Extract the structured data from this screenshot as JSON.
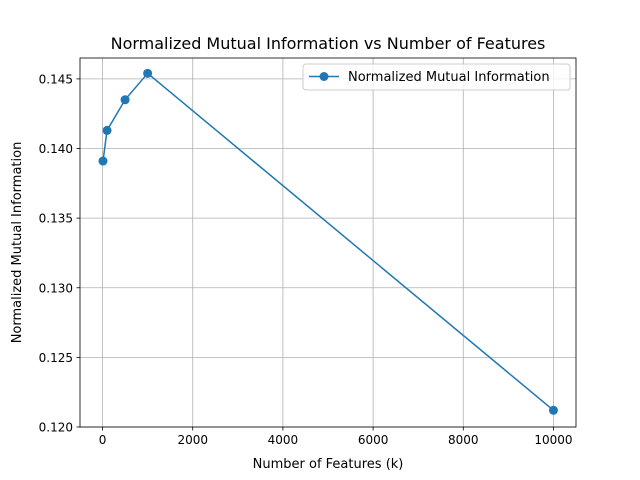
{
  "chart_data": {
    "type": "line",
    "title": "Normalized Mutual Information vs Number of Features",
    "xlabel": "Number of Features (k)",
    "ylabel": "Normalized Mutual Information",
    "xlim": [
      -500,
      10500
    ],
    "ylim": [
      0.12,
      0.1465
    ],
    "xticks": [
      0,
      2000,
      4000,
      6000,
      8000,
      10000
    ],
    "xtick_labels": [
      "0",
      "2000",
      "4000",
      "6000",
      "8000",
      "10000"
    ],
    "yticks": [
      0.12,
      0.125,
      0.13,
      0.135,
      0.14,
      0.145
    ],
    "ytick_labels": [
      "0.120",
      "0.125",
      "0.130",
      "0.135",
      "0.140",
      "0.145"
    ],
    "grid": true,
    "legend_position": "top-right",
    "series": [
      {
        "name": "Normalized Mutual Information",
        "color": "#1f77b4",
        "marker": "circle",
        "x": [
          10,
          100,
          500,
          1000,
          10000
        ],
        "y": [
          0.1391,
          0.1413,
          0.1435,
          0.1454,
          0.1212
        ]
      }
    ]
  }
}
